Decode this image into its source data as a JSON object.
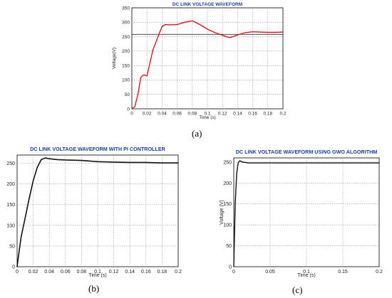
{
  "chart_data": [
    {
      "id": "a",
      "type": "line",
      "title": "DC LINK VOLTAGE WAVEFORM",
      "xlabel": "Time (s)",
      "ylabel": "Voltage(V)",
      "xlim": [
        0,
        0.2
      ],
      "ylim": [
        0,
        350
      ],
      "xticks": [
        0,
        0.02,
        0.04,
        0.06,
        0.08,
        0.1,
        0.12,
        0.14,
        0.16,
        0.18,
        0.2
      ],
      "xtick_labels": [
        "0",
        "0.02",
        "0.04",
        "0.06",
        "0.08",
        "0.1",
        "0.12",
        "0.14",
        "0.16",
        "0.18",
        "0.2"
      ],
      "yticks": [
        0,
        50,
        100,
        150,
        200,
        250,
        300,
        350
      ],
      "ytick_labels": [
        "0",
        "50",
        "100",
        "150",
        "200",
        "250",
        "300",
        "350"
      ],
      "grid": true,
      "reference_line": 258,
      "reference_color": "#333333",
      "series": [
        {
          "color": "#e0141e",
          "x": [
            0,
            0.004,
            0.008,
            0.012,
            0.016,
            0.02,
            0.024,
            0.028,
            0.032,
            0.036,
            0.04,
            0.044,
            0.05,
            0.06,
            0.07,
            0.08,
            0.09,
            0.1,
            0.11,
            0.12,
            0.125,
            0.13,
            0.14,
            0.15,
            0.16,
            0.17,
            0.18,
            0.19,
            0.2
          ],
          "y": [
            0,
            8,
            50,
            110,
            118,
            114,
            160,
            205,
            232,
            260,
            285,
            292,
            291,
            292,
            300,
            305,
            292,
            276,
            264,
            255,
            250,
            247,
            256,
            264,
            267,
            266,
            265,
            265,
            266
          ]
        }
      ]
    },
    {
      "id": "b",
      "type": "line",
      "title": "DC LINK VOLTAGE WAVEFORM WITH PI CONTROLLER",
      "xlabel": "Time (s)",
      "ylabel": "",
      "xlim": [
        0,
        0.2
      ],
      "ylim": [
        0,
        270
      ],
      "xticks": [
        0,
        0.02,
        0.04,
        0.06,
        0.08,
        0.1,
        0.12,
        0.14,
        0.16,
        0.18,
        0.2
      ],
      "xtick_labels": [
        "0",
        "0.02",
        "0.04",
        "0.06",
        "0.08",
        "0.1",
        "0.12",
        "0.14",
        "0.16",
        "0.18",
        "0.2"
      ],
      "yticks": [
        0,
        50,
        100,
        150,
        200,
        250
      ],
      "ytick_labels": [
        "0",
        "50",
        "100",
        "150",
        "200",
        "250"
      ],
      "grid": true,
      "series": [
        {
          "color": "#111111",
          "x": [
            0,
            0.002,
            0.005,
            0.01,
            0.015,
            0.02,
            0.025,
            0.03,
            0.035,
            0.04,
            0.05,
            0.06,
            0.08,
            0.1,
            0.12,
            0.14,
            0.16,
            0.18,
            0.2
          ],
          "y": [
            0,
            30,
            72,
            118,
            165,
            208,
            240,
            259,
            263,
            261,
            259,
            258,
            257,
            254,
            253,
            252,
            252,
            251,
            251
          ]
        }
      ]
    },
    {
      "id": "c",
      "type": "line",
      "title": "DC LINK VOLTAGE WAVEFORM USING GWO ALGORITHM",
      "xlabel": "Time (s)",
      "ylabel": "Voltage (V)",
      "xlim": [
        0,
        0.2
      ],
      "ylim": [
        0,
        260
      ],
      "xticks": [
        0,
        0.05,
        0.1,
        0.15,
        0.2
      ],
      "xtick_labels": [
        "0",
        "0.05",
        "0.1",
        "0.15",
        "0.2"
      ],
      "yticks": [
        0,
        50,
        100,
        150,
        200,
        250
      ],
      "ytick_labels": [
        "0",
        "50",
        "100",
        "150",
        "200",
        "250"
      ],
      "grid": true,
      "series": [
        {
          "color": "#111111",
          "x": [
            0,
            0.002,
            0.004,
            0.006,
            0.008,
            0.01,
            0.012,
            0.016,
            0.02,
            0.03,
            0.05,
            0.1,
            0.15,
            0.2
          ],
          "y": [
            0,
            150,
            222,
            248,
            253,
            252,
            250,
            249,
            248,
            248,
            248,
            248,
            248,
            248
          ]
        }
      ]
    }
  ],
  "captions": {
    "a": "(a)",
    "b": "(b)",
    "c": "(c)"
  }
}
